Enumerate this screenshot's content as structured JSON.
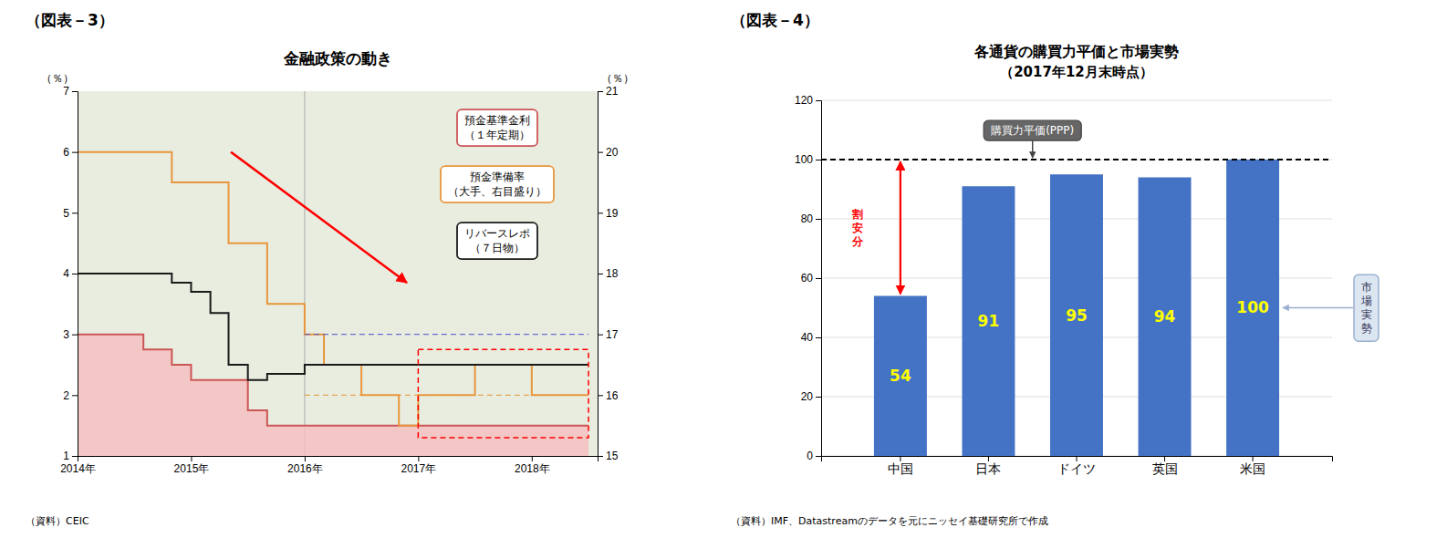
{
  "chart_data": [
    {
      "type": "line",
      "figure_label": "（図表－3）",
      "title": "金融政策の動き",
      "source": "（資料）CEIC",
      "ylabel": "（％）",
      "y2label": "（％）",
      "xlim": [
        2014.0,
        2018.58
      ],
      "xticks": [
        {
          "value": 2014,
          "label": "2014年"
        },
        {
          "value": 2015,
          "label": "2015年"
        },
        {
          "value": 2016,
          "label": "2016年"
        },
        {
          "value": 2017,
          "label": "2017年"
        },
        {
          "value": 2018,
          "label": "2018年"
        }
      ],
      "ylim": [
        1,
        7
      ],
      "yticks": [
        1,
        2,
        3,
        4,
        5,
        6,
        7
      ],
      "y2lim": [
        15,
        21
      ],
      "y2ticks": [
        15,
        16,
        17,
        18,
        19,
        20,
        21
      ],
      "background_color": "#e8ede0",
      "legend": "upper right",
      "series": [
        {
          "name": "預金基準金利\n（１年定期）",
          "type": "step_area",
          "color": "#cc5555",
          "fill_color": "#f5c0c0",
          "x": [
            2014.0,
            2014.58,
            2014.58,
            2014.83,
            2014.83,
            2015.0,
            2015.0,
            2015.5,
            2015.5,
            2015.67,
            2015.67,
            2018.5
          ],
          "values": [
            3.0,
            3.0,
            2.75,
            2.75,
            2.5,
            2.5,
            2.25,
            2.25,
            1.75,
            1.75,
            1.5,
            1.5
          ]
        },
        {
          "name": "預金準備率\n（大手、右目盛り）",
          "type": "step",
          "axis": "y2",
          "color": "#e8963c",
          "x": [
            2014.0,
            2014.83,
            2014.83,
            2015.33,
            2015.33,
            2015.67,
            2015.67,
            2016.0,
            2016.0,
            2016.17,
            2016.17,
            2016.5,
            2016.5,
            2016.83,
            2016.83,
            2017.0,
            2017.0,
            2017.5,
            2017.5,
            2018.0,
            2018.0,
            2018.5
          ],
          "values": [
            20.0,
            20.0,
            19.5,
            19.5,
            18.5,
            18.5,
            17.5,
            17.5,
            17.0,
            17.0,
            16.5,
            16.5,
            16.0,
            16.0,
            15.5,
            15.5,
            16.0,
            16.0,
            16.5,
            16.5,
            16.0,
            16.0
          ]
        },
        {
          "name": "リバースレポ\n（７日物）",
          "type": "step",
          "color": "#1a1a1a",
          "x": [
            2014.0,
            2014.83,
            2014.83,
            2015.0,
            2015.0,
            2015.17,
            2015.17,
            2015.33,
            2015.33,
            2015.5,
            2015.5,
            2015.67,
            2015.67,
            2016.0,
            2016.0,
            2018.5
          ],
          "values": [
            4.0,
            4.0,
            3.85,
            3.85,
            3.7,
            3.7,
            3.35,
            3.35,
            2.5,
            2.5,
            2.25,
            2.25,
            2.35,
            2.35,
            2.5,
            2.5
          ]
        }
      ],
      "reference_lines": [
        {
          "axis": "y2",
          "color": "#5555cc",
          "line_style": "dashed",
          "x": [
            2016.0,
            2018.5
          ],
          "values": [
            17.0,
            17.0
          ]
        },
        {
          "axis": "y2",
          "color": "#e8963c",
          "line_style": "dashed",
          "x": [
            2016.0,
            2018.5
          ],
          "values": [
            16.0,
            16.0
          ]
        }
      ],
      "box": {
        "x": [
          2017.0,
          2018.5
        ],
        "y": [
          1.3,
          2.75
        ],
        "color": "red",
        "line_style": "dashed"
      },
      "arrow": {
        "x": [
          2015.35,
          2016.9
        ],
        "y": [
          6.0,
          3.85
        ],
        "color": "red"
      },
      "vline": 2016.0
    },
    {
      "type": "bar",
      "figure_label": "（図表－4）",
      "title": "各通貨の購買力平価と市場実勢",
      "subtitle": "（2017年12月末時点）",
      "source": "（資料）IMF、Datastreamのデータを元にニッセイ基礎研究所で作成",
      "categories": [
        "中国",
        "日本",
        "ドイツ",
        "英国",
        "米国"
      ],
      "values": [
        54,
        91,
        95,
        94,
        100
      ],
      "color": "#4472c4",
      "data_labels": true,
      "data_label_color": "#ffff00",
      "ylim": [
        0,
        120
      ],
      "yticks": [
        0,
        20,
        40,
        60,
        80,
        100,
        120
      ],
      "grid": true,
      "reference_line": {
        "value": 100,
        "label": "購買力平価(PPP)",
        "line_style": "dashed"
      },
      "arrow": {
        "label": "割\n安\n分",
        "color": "red"
      },
      "callout_label": "市\n場\n実\n勢"
    }
  ]
}
